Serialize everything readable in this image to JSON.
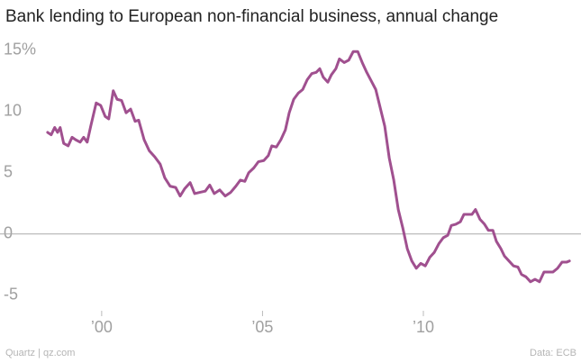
{
  "chart_data": {
    "type": "line",
    "title": "Bank lending to European non-financial business, annual change",
    "source": "Data: ECB",
    "credit": "Quartz | qz.com",
    "color": "#a0508f",
    "x": [
      1998.32,
      1998.43,
      1998.54,
      1998.63,
      1998.71,
      1998.82,
      1998.96,
      1999.08,
      1999.19,
      1999.33,
      1999.44,
      1999.55,
      1999.66,
      1999.83,
      1999.97,
      2000.11,
      2000.22,
      2000.36,
      2000.48,
      2000.62,
      2000.76,
      2000.9,
      2001.04,
      2001.15,
      2001.32,
      2001.48,
      2001.65,
      2001.82,
      2001.96,
      2002.13,
      2002.3,
      2002.44,
      2002.58,
      2002.75,
      2002.89,
      2003.05,
      2003.22,
      2003.36,
      2003.5,
      2003.67,
      2003.84,
      2004.01,
      2004.17,
      2004.31,
      2004.45,
      2004.57,
      2004.73,
      2004.87,
      2005.04,
      2005.18,
      2005.29,
      2005.43,
      2005.57,
      2005.71,
      2005.83,
      2005.97,
      2006.11,
      2006.25,
      2006.39,
      2006.53,
      2006.67,
      2006.78,
      2006.89,
      2007.03,
      2007.14,
      2007.28,
      2007.39,
      2007.54,
      2007.68,
      2007.82,
      2007.96,
      2008.1,
      2008.24,
      2008.38,
      2008.52,
      2008.66,
      2008.8,
      2008.94,
      2009.08,
      2009.22,
      2009.36,
      2009.5,
      2009.64,
      2009.78,
      2009.92,
      2010.06,
      2010.2,
      2010.34,
      2010.48,
      2010.62,
      2010.76,
      2010.87,
      2011.01,
      2011.15,
      2011.26,
      2011.4,
      2011.51,
      2011.62,
      2011.76,
      2011.9,
      2012.02,
      2012.16,
      2012.27,
      2012.41,
      2012.52,
      2012.66,
      2012.8,
      2012.94,
      2013.05,
      2013.19,
      2013.33,
      2013.47,
      2013.61,
      2013.75,
      2013.89,
      2014.03,
      2014.17,
      2014.31,
      2014.45,
      2014.54
    ],
    "values": [
      8.3,
      8.1,
      8.7,
      8.3,
      8.7,
      7.4,
      7.2,
      7.9,
      7.7,
      7.5,
      7.9,
      7.5,
      8.8,
      10.7,
      10.5,
      9.6,
      9.4,
      11.7,
      11.0,
      10.9,
      9.9,
      10.2,
      9.2,
      9.3,
      7.7,
      6.8,
      6.3,
      5.7,
      4.6,
      3.9,
      3.8,
      3.1,
      3.7,
      4.2,
      3.3,
      3.4,
      3.5,
      4.0,
      3.3,
      3.6,
      3.1,
      3.4,
      3.9,
      4.4,
      4.3,
      5.0,
      5.4,
      5.9,
      6.0,
      6.4,
      7.2,
      7.1,
      7.7,
      8.5,
      9.9,
      11.0,
      11.5,
      11.8,
      12.6,
      13.1,
      13.2,
      13.5,
      12.8,
      12.4,
      13.0,
      13.5,
      14.3,
      14.0,
      14.2,
      14.9,
      14.9,
      14.0,
      13.2,
      12.5,
      11.8,
      10.3,
      8.8,
      6.2,
      4.4,
      2.0,
      0.5,
      -1.2,
      -2.2,
      -2.8,
      -2.4,
      -2.6,
      -1.9,
      -1.5,
      -0.8,
      -0.3,
      -0.1,
      0.7,
      0.8,
      1.0,
      1.6,
      1.6,
      1.6,
      2.0,
      1.2,
      0.8,
      0.3,
      0.3,
      -0.6,
      -1.2,
      -1.8,
      -2.2,
      -2.6,
      -2.7,
      -3.3,
      -3.5,
      -3.9,
      -3.7,
      -3.9,
      -3.1,
      -3.1,
      -3.1,
      -2.8,
      -2.3,
      -2.3,
      -2.2
    ],
    "xlim": [
      1997.4,
      2014.9
    ],
    "xticks": [
      {
        "value": 2000,
        "label": "’00"
      },
      {
        "value": 2005,
        "label": "’05"
      },
      {
        "value": 2010,
        "label": "’10"
      }
    ],
    "ylim": [
      -5.9,
      15.8
    ],
    "yticks": [
      {
        "value": 15,
        "label": "15%"
      },
      10,
      5,
      0,
      -5
    ],
    "grid": false,
    "zero_line": true
  }
}
